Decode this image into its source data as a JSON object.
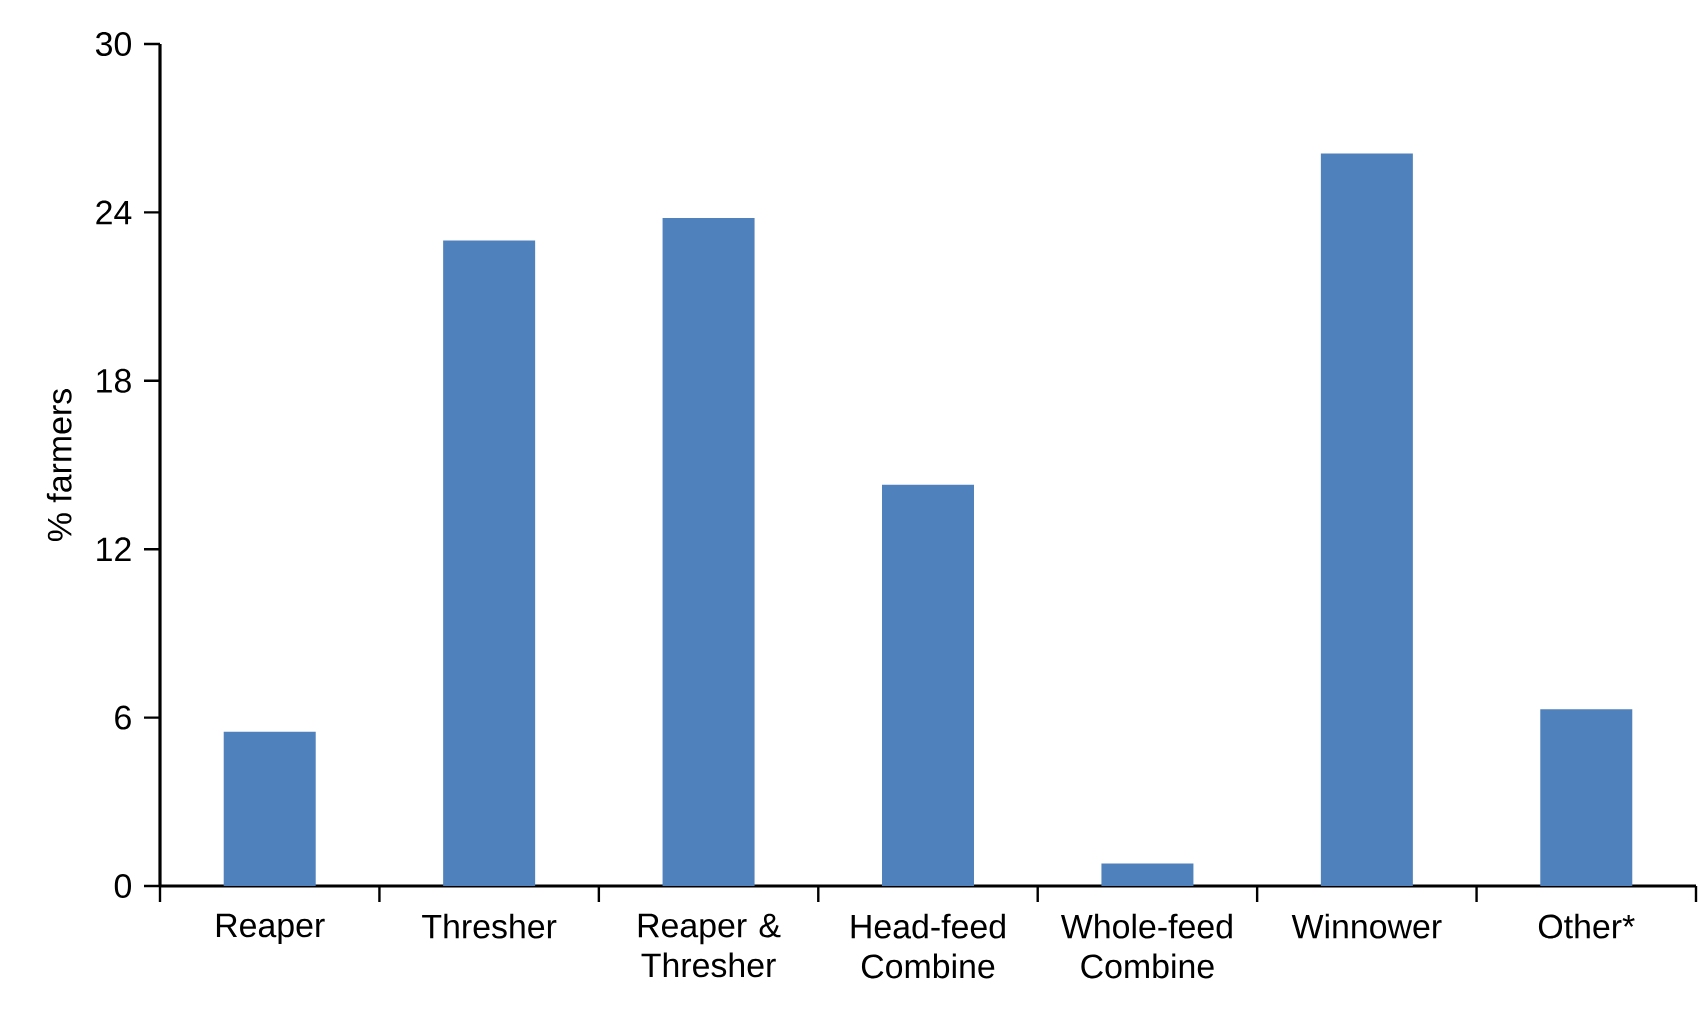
{
  "chart_data": {
    "type": "bar",
    "ylabel": "% farmers",
    "categories": [
      "Reaper",
      "Thresher",
      "Reaper & Thresher",
      "Head-feed Combine",
      "Whole-feed Combine",
      "Winnower",
      "Other*"
    ],
    "values": [
      5.5,
      23.0,
      23.8,
      14.3,
      0.8,
      26.1,
      6.3
    ],
    "color": "#4f81bd",
    "ylim": [
      0,
      30
    ],
    "yticks": [
      0,
      6,
      12,
      18,
      24,
      30
    ]
  }
}
